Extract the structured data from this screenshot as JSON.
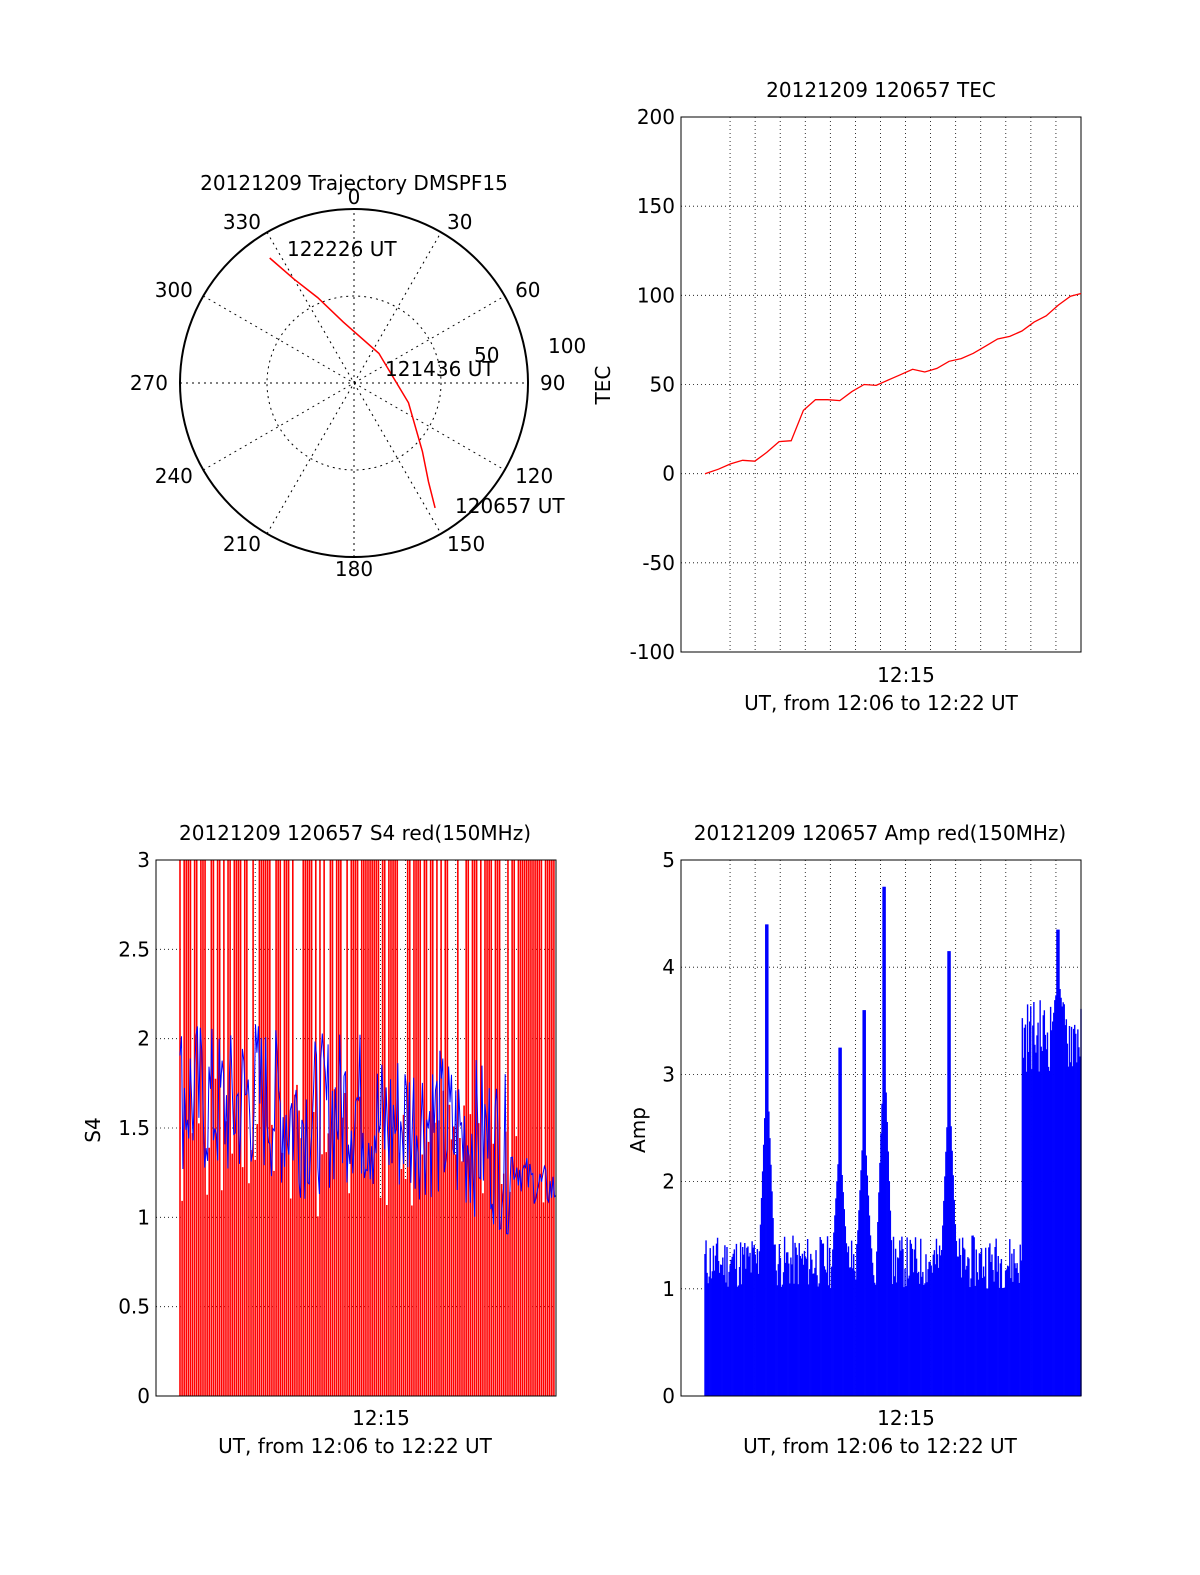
{
  "chart_data": [
    {
      "type": "polar",
      "title": "20121209 Trajectory DMSPF15",
      "angle_labels": [
        "0",
        "30",
        "60",
        "90",
        "120",
        "150",
        "180",
        "210",
        "240",
        "270",
        "300",
        "330"
      ],
      "radial_labels": [
        "50",
        "100"
      ],
      "annotations": [
        "122226 UT",
        "121436 UT",
        "120657 UT"
      ],
      "colors": {
        "trajectory": "#ff0000",
        "axes": "#000000"
      },
      "trajectory": [
        {
          "azimuth": 326,
          "elevation": 12
        },
        {
          "azimuth": 330,
          "elevation": 28
        },
        {
          "azimuth": 337,
          "elevation": 42
        },
        {
          "azimuth": 350,
          "elevation": 58
        },
        {
          "azimuth": 40,
          "elevation": 70
        },
        {
          "azimuth": 110,
          "elevation": 60
        },
        {
          "azimuth": 135,
          "elevation": 40
        },
        {
          "azimuth": 143,
          "elevation": 26
        },
        {
          "azimuth": 147,
          "elevation": 13
        }
      ]
    },
    {
      "type": "line",
      "title": "20121209 120657 TEC",
      "xlabel": "UT, from 12:06 to 12:22 UT",
      "ylabel": "TEC",
      "xtick_labels": [
        "12:15"
      ],
      "ylim": [
        -100,
        200
      ],
      "yticks": [
        "-100",
        "-50",
        "0",
        "50",
        "100",
        "150",
        "200"
      ],
      "grid": true,
      "colors": {
        "series": "#ff0000"
      },
      "series": [
        {
          "x": [
            "12:06:57",
            "12:07:30",
            "12:08:00",
            "12:08:30",
            "12:09:00",
            "12:09:30",
            "12:10:00",
            "12:10:30",
            "12:11:00",
            "12:11:30",
            "12:12:00",
            "12:12:30",
            "12:13:00",
            "12:13:30",
            "12:14:00",
            "12:14:30",
            "12:15:00",
            "12:15:30",
            "12:16:00",
            "12:16:30",
            "12:17:00",
            "12:17:30",
            "12:18:00",
            "12:18:30",
            "12:19:00",
            "12:19:30",
            "12:20:00",
            "12:20:30",
            "12:21:00",
            "12:21:30",
            "12:22:00",
            "12:22:26"
          ],
          "values": [
            0,
            3,
            5,
            6,
            8,
            12,
            17,
            20,
            36,
            41,
            40,
            42,
            46,
            49,
            51,
            53,
            55,
            57,
            58,
            59,
            62,
            66,
            68,
            71,
            74,
            78,
            80,
            84,
            90,
            95,
            99,
            101
          ]
        }
      ]
    },
    {
      "type": "line",
      "title": "20121209 120657 S4 red(150MHz)",
      "xlabel": "UT, from 12:06 to 12:22 UT",
      "ylabel": "S4",
      "xtick_labels": [
        "12:15"
      ],
      "ylim": [
        0,
        3
      ],
      "yticks": [
        "0",
        "0.5",
        "1",
        "1.5",
        "2",
        "2.5",
        "3"
      ],
      "grid": true,
      "colors": {
        "raw": "#ff0000",
        "smoothed": "#0000ff"
      },
      "series": [
        {
          "x": [
            "12:07",
            "12:08",
            "12:09",
            "12:10",
            "12:11",
            "12:12",
            "12:13",
            "12:14",
            "12:15",
            "12:16",
            "12:17",
            "12:18",
            "12:19",
            "12:20",
            "12:21",
            "12:22"
          ],
          "values": [
            1.7,
            1.65,
            1.6,
            1.7,
            1.6,
            1.55,
            1.6,
            1.65,
            1.5,
            1.55,
            1.55,
            1.45,
            1.45,
            1.35,
            1.2,
            1.15
          ]
        }
      ]
    },
    {
      "type": "bar",
      "title": "20121209 120657 Amp red(150MHz)",
      "xlabel": "UT, from 12:06 to 12:22 UT",
      "ylabel": "Amp",
      "xtick_labels": [
        "12:15"
      ],
      "ylim": [
        0,
        5
      ],
      "yticks": [
        "0",
        "1",
        "2",
        "3",
        "4",
        "5"
      ],
      "grid": true,
      "colors": {
        "series": "#0000ff"
      },
      "peaks": [
        {
          "x": "12:09:30",
          "value": 4.4
        },
        {
          "x": "12:12:30",
          "value": 3.25
        },
        {
          "x": "12:13:30",
          "value": 3.6
        },
        {
          "x": "12:14:20",
          "value": 4.75
        },
        {
          "x": "12:17:00",
          "value": 4.15
        },
        {
          "x": "12:21:30",
          "value": 4.35
        }
      ],
      "baseline": {
        "before_12:20": 1.2,
        "after_12:20": 3.3
      }
    }
  ]
}
